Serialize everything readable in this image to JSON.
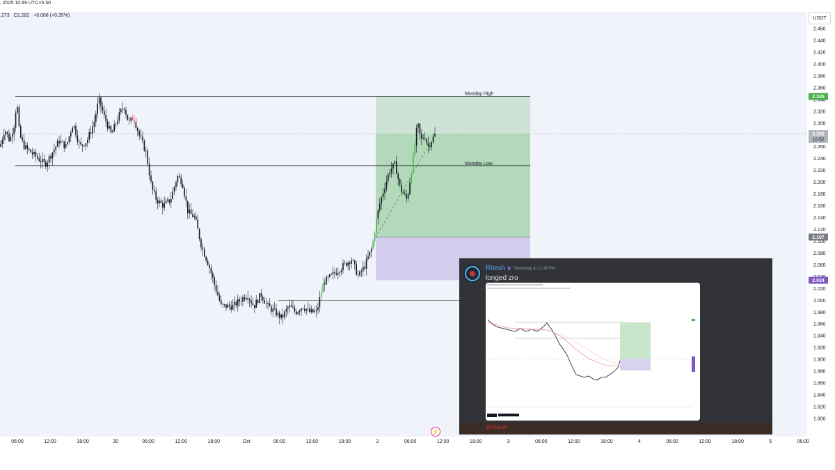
{
  "header": {
    "datetime_fragment": ", 2025 10:49 UTC+5:30",
    "ohlc_partial": ".273",
    "close": "C2.282",
    "change": "+0.008 (+0.35%)"
  },
  "price_axis": {
    "unit": "USDT",
    "ticks": [
      "2.460",
      "2.440",
      "2.420",
      "2.400",
      "2.380",
      "2.360",
      "2.340",
      "2.320",
      "2.300",
      "2.280",
      "2.260",
      "2.240",
      "2.220",
      "2.200",
      "2.180",
      "2.160",
      "2.140",
      "2.120",
      "2.100",
      "2.080",
      "2.060",
      "2.040",
      "2.020",
      "2.000",
      "1.980",
      "1.960",
      "1.940",
      "1.920",
      "1.900",
      "1.880",
      "1.860",
      "1.840",
      "1.820",
      "1.800"
    ],
    "badges": [
      {
        "label": "2.345",
        "color": "#4caf50"
      },
      {
        "label": "2.282",
        "sub": "10:52",
        "color": "#b2b5be"
      },
      {
        "label": "2.107",
        "color": "#787b86"
      },
      {
        "label": "2.034",
        "color": "#7e57c2"
      }
    ]
  },
  "time_axis": {
    "ticks": [
      "06:00",
      "12:00",
      "18:00",
      "30",
      "06:00",
      "12:00",
      "18:00",
      "Oct",
      "06:00",
      "12:00",
      "18:00",
      "2",
      "06:00",
      "12:00",
      "18:00",
      "3",
      "06:00",
      "12:00",
      "18:00",
      "4",
      "06:00",
      "12:00",
      "18:00",
      "5",
      "06:00"
    ]
  },
  "levels": {
    "monday_high_label": "Monday High",
    "monday_low_label": "Monday Low"
  },
  "colors": {
    "candle": "#131722",
    "candle_up_highlight": "#4caf50",
    "candle_down_highlight": "#ef5350",
    "target_zone": "#4caf50",
    "stop_zone": "#9575cd"
  },
  "discord": {
    "username": "Ritesh",
    "timestamp": "Yesterday at 11:49 PM",
    "message": "longed zro",
    "footer_mention": "@Ritesh",
    "attachment_brand": "TradingView"
  },
  "chart_data": {
    "type": "candlestick",
    "title": "",
    "xlabel": "",
    "ylabel": "",
    "unit": "USDT",
    "ylim": [
      1.79,
      2.47
    ],
    "x_ticks": [
      "06:00",
      "12:00",
      "18:00",
      "30",
      "06:00",
      "12:00",
      "18:00",
      "Oct",
      "06:00",
      "12:00",
      "18:00",
      "2",
      "06:00",
      "12:00",
      "18:00",
      "3",
      "06:00",
      "12:00",
      "18:00",
      "4",
      "06:00",
      "12:00",
      "18:00",
      "5",
      "06:00"
    ],
    "price_path": [
      [
        0,
        2.26
      ],
      [
        7,
        2.29
      ],
      [
        14,
        2.27
      ],
      [
        21,
        2.3
      ],
      [
        24,
        2.34
      ],
      [
        28,
        2.28
      ],
      [
        35,
        2.26
      ],
      [
        45,
        2.25
      ],
      [
        55,
        2.24
      ],
      [
        65,
        2.23
      ],
      [
        75,
        2.25
      ],
      [
        85,
        2.27
      ],
      [
        95,
        2.26
      ],
      [
        105,
        2.3
      ],
      [
        115,
        2.26
      ],
      [
        125,
        2.27
      ],
      [
        135,
        2.3
      ],
      [
        142,
        2.34
      ],
      [
        150,
        2.31
      ],
      [
        160,
        2.28
      ],
      [
        170,
        2.31
      ],
      [
        178,
        2.33
      ],
      [
        185,
        2.3
      ],
      [
        192,
        2.31
      ],
      [
        200,
        2.28
      ],
      [
        210,
        2.25
      ],
      [
        218,
        2.19
      ],
      [
        225,
        2.17
      ],
      [
        235,
        2.16
      ],
      [
        245,
        2.17
      ],
      [
        255,
        2.21
      ],
      [
        262,
        2.2
      ],
      [
        270,
        2.15
      ],
      [
        280,
        2.14
      ],
      [
        290,
        2.09
      ],
      [
        300,
        2.06
      ],
      [
        310,
        2.02
      ],
      [
        318,
        1.99
      ],
      [
        325,
        1.99
      ],
      [
        335,
        1.99
      ],
      [
        345,
        2.0
      ],
      [
        355,
        2.01
      ],
      [
        365,
        1.99
      ],
      [
        375,
        2.01
      ],
      [
        385,
        1.99
      ],
      [
        395,
        1.98
      ],
      [
        405,
        1.97
      ],
      [
        415,
        1.99
      ],
      [
        425,
        1.98
      ],
      [
        435,
        1.99
      ],
      [
        445,
        1.98
      ],
      [
        455,
        1.98
      ],
      [
        465,
        2.03
      ],
      [
        475,
        2.04
      ],
      [
        485,
        2.05
      ],
      [
        495,
        2.06
      ],
      [
        505,
        2.07
      ],
      [
        515,
        2.04
      ],
      [
        525,
        2.06
      ],
      [
        535,
        2.09
      ],
      [
        540,
        2.13
      ],
      [
        545,
        2.16
      ],
      [
        552,
        2.19
      ],
      [
        560,
        2.22
      ],
      [
        568,
        2.23
      ],
      [
        575,
        2.19
      ],
      [
        580,
        2.18
      ],
      [
        585,
        2.17
      ],
      [
        590,
        2.21
      ],
      [
        595,
        2.25
      ],
      [
        600,
        2.3
      ],
      [
        605,
        2.27
      ],
      [
        610,
        2.28
      ],
      [
        615,
        2.26
      ],
      [
        620,
        2.27
      ],
      [
        626,
        2.282
      ]
    ],
    "levels": [
      {
        "name": "Monday High",
        "value": 2.345
      },
      {
        "name": "Monday Low",
        "value": 2.228
      },
      {
        "value": 2.0
      }
    ],
    "position": {
      "entry": 2.107,
      "target": 2.345,
      "stop": 2.034,
      "current": 2.282
    }
  }
}
